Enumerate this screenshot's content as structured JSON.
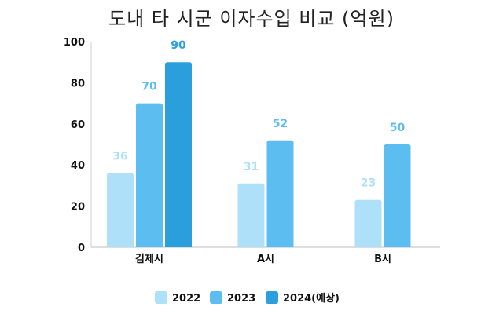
{
  "chart_data": {
    "type": "bar",
    "title": "도내 타 시군 이자수입 비교 (억원)",
    "categories": [
      "김제시",
      "A시",
      "B시"
    ],
    "series": [
      {
        "name": "2022",
        "values": [
          36,
          31,
          23
        ],
        "color": "#aee0fa"
      },
      {
        "name": "2023",
        "values": [
          70,
          52,
          50
        ],
        "color": "#5cbdf1"
      },
      {
        "name": "2024(예상)",
        "values": [
          90,
          null,
          null
        ],
        "color": "#2b9fdc"
      }
    ],
    "ylim": [
      0,
      100
    ],
    "yticks": [
      "0",
      "20",
      "40",
      "60",
      "80",
      "100"
    ],
    "xlabel": "",
    "ylabel": "",
    "grid": false,
    "legend_position": "bottom"
  }
}
